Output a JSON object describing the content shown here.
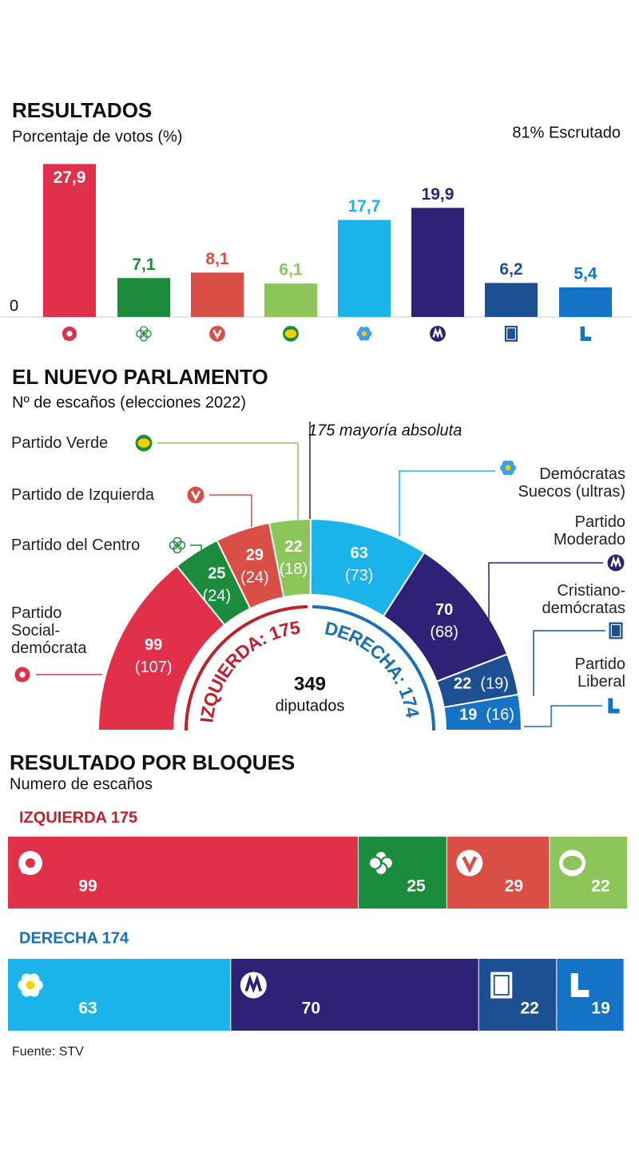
{
  "chart_data": [
    {
      "type": "bar",
      "title": "RESULTADOS",
      "subtitle": "Porcentaje de votos (%)",
      "note": "81% Escrutado",
      "categories": [
        null,
        null,
        null,
        null,
        null,
        null,
        null,
        null
      ],
      "values": [
        27.9,
        7.1,
        8.1,
        6.1,
        17.7,
        19.9,
        6.2,
        5.4
      ],
      "value_labels": [
        "27,9",
        "7,1",
        "8,1",
        "6,1",
        "17,7",
        "19,9",
        "6,2",
        "5,4"
      ],
      "colors": [
        "#e0304a",
        "#1a8c3c",
        "#d94f45",
        "#8cc55a",
        "#1bb4ea",
        "#2e2277",
        "#1d4f93",
        "#1473c4"
      ],
      "ylim": [
        0,
        30
      ],
      "yticks": [
        0
      ]
    },
    {
      "type": "hemicycle",
      "title": "EL NUEVO PARLAMENTO",
      "subtitle": "Nº de escaños (elecciones 2022)",
      "annotation": "175 mayoría absoluta",
      "total": 349,
      "total_label": "diputados",
      "categories": [
        "Partido\nSocial-\ndemócrata",
        "Partido del Centro",
        "Partido de Izquierda",
        "Partido Verde",
        "Demócratas\nSuecos (ultras)",
        "Partido\nModerado",
        "Cristiano-\ndemócratas",
        "Partido\nLiberal"
      ],
      "values": [
        99,
        25,
        29,
        22,
        63,
        70,
        22,
        19
      ],
      "previous": {
        "values": [
          107,
          24,
          24,
          18,
          73,
          68,
          19,
          16
        ],
        "value_labels": [
          "(107)",
          "(24)",
          "(24)",
          "(18)",
          "(73)",
          "(68)",
          "(19)",
          "(16)"
        ]
      },
      "colors": [
        "#e0304a",
        "#1a8c3c",
        "#d94f45",
        "#8cc55a",
        "#1bb4ea",
        "#2e2277",
        "#1d4f93",
        "#1473c4"
      ],
      "blocks": [
        {
          "label": "IZQUIERDA: 175",
          "color": "#c0202d"
        },
        {
          "label": "DERECHA: 174",
          "color": "#1a6fb5"
        }
      ]
    },
    {
      "type": "stacked-bar",
      "title": "RESULTADO POR BLOQUES",
      "subtitle": "Numero de escaños",
      "xlim": [
        0,
        175
      ],
      "series": [
        {
          "name": "IZQUIERDA 175",
          "color": "#c0202d",
          "values": [
            99,
            25,
            29,
            22
          ],
          "colors": [
            "#e0304a",
            "#1a8c3c",
            "#d94f45",
            "#8cc55a"
          ]
        },
        {
          "name": "DERECHA 174",
          "color": "#1a6fb5",
          "values": [
            63,
            70,
            22,
            19
          ],
          "colors": [
            "#1bb4ea",
            "#2e2277",
            "#1d4f93",
            "#1473c4"
          ]
        }
      ]
    }
  ],
  "source": "Fuente: STV"
}
